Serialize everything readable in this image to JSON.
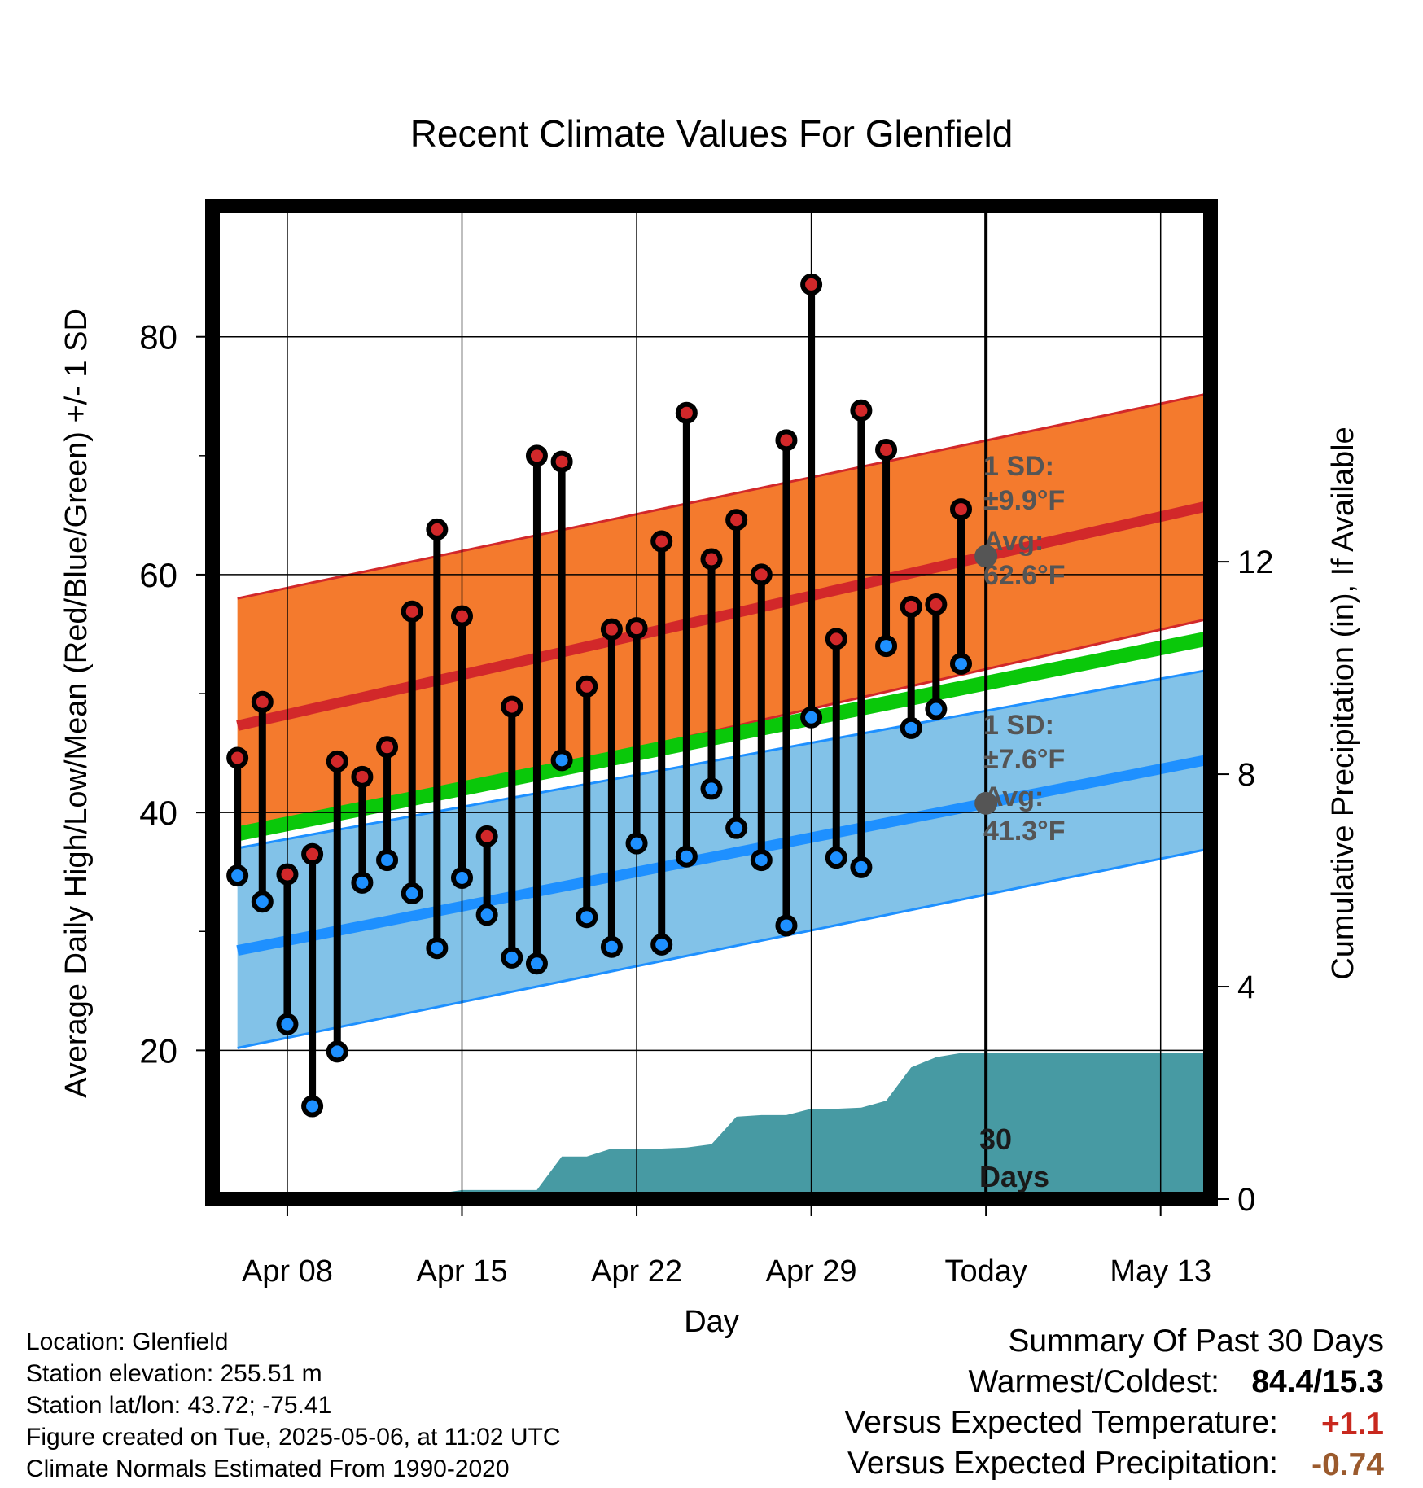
{
  "title": "Recent Climate Values For Glenfield",
  "footer": {
    "location": "Location: Glenfield",
    "elevation": "Station elevation: 255.51 m",
    "latlon": "Station lat/lon: 43.72; -75.41",
    "created": "Figure created on Tue, 2025-05-06, at 11:02 UTC",
    "normals": "Climate Normals Estimated From 1990-2020"
  },
  "summary": {
    "heading": "Summary Of Past 30 Days",
    "warm_cold_label": "Warmest/Coldest:",
    "warm_cold_value": "84.4/15.3",
    "temp_label": "Versus Expected Temperature:",
    "temp_value": "+1.1",
    "temp_color": "#c8281e",
    "precip_label": "Versus Expected Precipitation:",
    "precip_value": "-0.74",
    "precip_color": "#9b5a2d"
  },
  "annotations": {
    "high_sd": [
      "1 SD:",
      "±9.9°F"
    ],
    "high_avg": [
      "Avg:",
      "62.6°F"
    ],
    "low_sd": [
      "1 SD:",
      "±7.6°F"
    ],
    "low_avg": [
      "Avg:",
      "41.3°F"
    ],
    "days": [
      "30",
      "Days"
    ]
  },
  "colors": {
    "high_band": "#f47a2d",
    "high_line": "#d2282a",
    "low_band": "#82c2e8",
    "low_line": "#1e90ff",
    "mean_line": "#0ac80a",
    "precip": "#479aa3",
    "high_marker": "#d2282a",
    "low_marker": "#1e90ff",
    "annotation": "#555555"
  },
  "chart_data": {
    "type": "line",
    "xlabel": "Day",
    "ylabel": "Average Daily High/Low/Mean (Red/Blue/Green) +/- 1 SD",
    "y2label": "Cumulative Precipitation (in), If Available",
    "ylim": [
      7.5,
      91
    ],
    "y2lim": [
      0,
      18.7
    ],
    "xlim": [
      "2025-04-05",
      "2025-05-15"
    ],
    "yticks": [
      20,
      40,
      60,
      80
    ],
    "yticks_minor": [
      30,
      50,
      70
    ],
    "y2ticks": [
      0,
      4,
      8,
      12
    ],
    "xticks": [
      {
        "date": "2025-04-08",
        "label": "Apr 08"
      },
      {
        "date": "2025-04-15",
        "label": "Apr 15"
      },
      {
        "date": "2025-04-22",
        "label": "Apr 22"
      },
      {
        "date": "2025-04-29",
        "label": "Apr 29"
      },
      {
        "date": "2025-05-06",
        "label": "Today"
      },
      {
        "date": "2025-05-13",
        "label": "May 13"
      }
    ],
    "today": "2025-05-06",
    "grid": true,
    "normals": {
      "x": [
        "2025-04-06",
        "2025-05-16"
      ],
      "high_mean": [
        47.3,
        66.3
      ],
      "high_upper": [
        58.0,
        75.7
      ],
      "high_lower": [
        37.8,
        56.8
      ],
      "mean": [
        38.2,
        55.1
      ],
      "low_mean": [
        28.4,
        44.9
      ],
      "low_upper": [
        37.0,
        52.4
      ],
      "low_lower": [
        20.2,
        37.4
      ]
    },
    "series": [
      {
        "name": "High",
        "x": [
          "2025-04-06",
          "2025-04-07",
          "2025-04-08",
          "2025-04-09",
          "2025-04-10",
          "2025-04-11",
          "2025-04-12",
          "2025-04-13",
          "2025-04-14",
          "2025-04-15",
          "2025-04-16",
          "2025-04-17",
          "2025-04-18",
          "2025-04-19",
          "2025-04-20",
          "2025-04-21",
          "2025-04-22",
          "2025-04-23",
          "2025-04-24",
          "2025-04-25",
          "2025-04-26",
          "2025-04-27",
          "2025-04-28",
          "2025-04-29",
          "2025-04-30",
          "2025-05-01",
          "2025-05-02",
          "2025-05-03",
          "2025-05-04",
          "2025-05-05"
        ],
        "values": [
          44.6,
          49.3,
          34.8,
          36.5,
          44.3,
          43.0,
          45.5,
          56.9,
          63.8,
          56.5,
          38.0,
          48.9,
          70.0,
          69.5,
          50.6,
          55.4,
          55.5,
          62.8,
          73.6,
          61.3,
          64.6,
          60.0,
          71.3,
          84.4,
          54.6,
          73.8,
          70.5,
          57.3,
          57.5,
          65.5
        ]
      },
      {
        "name": "Low",
        "x": [
          "2025-04-06",
          "2025-04-07",
          "2025-04-08",
          "2025-04-09",
          "2025-04-10",
          "2025-04-11",
          "2025-04-12",
          "2025-04-13",
          "2025-04-14",
          "2025-04-15",
          "2025-04-16",
          "2025-04-17",
          "2025-04-18",
          "2025-04-19",
          "2025-04-20",
          "2025-04-21",
          "2025-04-22",
          "2025-04-23",
          "2025-04-24",
          "2025-04-25",
          "2025-04-26",
          "2025-04-27",
          "2025-04-28",
          "2025-04-29",
          "2025-04-30",
          "2025-05-01",
          "2025-05-02",
          "2025-05-03",
          "2025-05-04",
          "2025-05-05"
        ],
        "values": [
          34.7,
          32.5,
          22.2,
          15.3,
          19.9,
          34.1,
          36.0,
          33.2,
          28.6,
          34.5,
          31.4,
          27.8,
          27.3,
          44.4,
          31.2,
          28.7,
          37.4,
          28.9,
          36.3,
          42.0,
          38.7,
          36.0,
          30.5,
          48.0,
          36.2,
          35.4,
          54.0,
          47.1,
          48.7,
          52.5
        ]
      }
    ],
    "precipitation": {
      "x": [
        "2025-04-05",
        "2025-04-06",
        "2025-04-07",
        "2025-04-08",
        "2025-04-09",
        "2025-04-10",
        "2025-04-11",
        "2025-04-12",
        "2025-04-13",
        "2025-04-14",
        "2025-04-15",
        "2025-04-16",
        "2025-04-17",
        "2025-04-18",
        "2025-04-19",
        "2025-04-20",
        "2025-04-21",
        "2025-04-22",
        "2025-04-23",
        "2025-04-24",
        "2025-04-25",
        "2025-04-26",
        "2025-04-27",
        "2025-04-28",
        "2025-04-29",
        "2025-04-30",
        "2025-05-01",
        "2025-05-02",
        "2025-05-03",
        "2025-05-04",
        "2025-05-05",
        "2025-05-06",
        "2025-05-16"
      ],
      "values": [
        0,
        0,
        0,
        0,
        0,
        0,
        0,
        0.1,
        0.1,
        0.1,
        0.17,
        0.17,
        0.17,
        0.17,
        0.8,
        0.8,
        0.95,
        0.95,
        0.95,
        0.97,
        1.03,
        1.55,
        1.58,
        1.58,
        1.7,
        1.7,
        1.72,
        1.85,
        2.48,
        2.67,
        2.75,
        2.75,
        2.75
      ]
    }
  }
}
